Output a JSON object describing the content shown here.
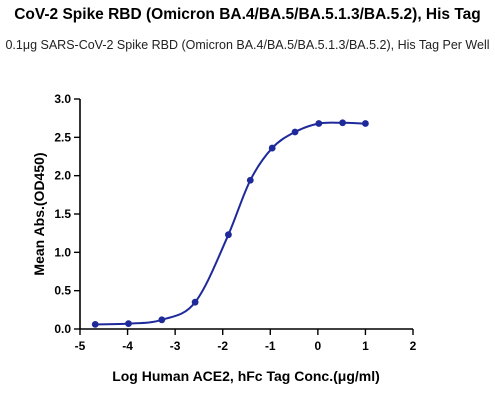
{
  "chart_data": {
    "type": "line",
    "title": "CoV-2 Spike RBD (Omicron BA.4/BA.5/BA.5.1.3/BA.5.2), His Tag",
    "subtitle": "0.1μg SARS-CoV-2 Spike RBD (Omicron BA.4/BA.5/BA.5.1.3/BA.5.2), His Tag Per Well",
    "xlabel": "Log Human ACE2, hFc Tag Conc.(μg/ml)",
    "ylabel": "Mean Abs.(OD450)",
    "xlim": [
      -5,
      2
    ],
    "ylim": [
      0,
      3.0
    ],
    "x_ticks": [
      -5,
      -4,
      -3,
      -2,
      -1,
      0,
      1,
      2
    ],
    "x_tick_labels": [
      "-5",
      "-4",
      "-3",
      "-2",
      "-1",
      "0",
      "1",
      "2"
    ],
    "y_ticks": [
      0,
      0.5,
      1.0,
      1.5,
      2.0,
      2.5,
      3.0
    ],
    "y_tick_labels": [
      "0.0",
      "0.5",
      "1.0",
      "1.5",
      "2.0",
      "2.5",
      "3.0"
    ],
    "grid": false,
    "series_color": "#1f2a9a",
    "points": [
      {
        "x": -4.68,
        "y": 0.06
      },
      {
        "x": -3.98,
        "y": 0.07
      },
      {
        "x": -3.28,
        "y": 0.12
      },
      {
        "x": -2.58,
        "y": 0.35
      },
      {
        "x": -1.88,
        "y": 1.23
      },
      {
        "x": -1.42,
        "y": 1.94
      },
      {
        "x": -0.96,
        "y": 2.36
      },
      {
        "x": -0.48,
        "y": 2.57
      },
      {
        "x": 0.02,
        "y": 2.68
      },
      {
        "x": 0.52,
        "y": 2.69
      },
      {
        "x": 1.0,
        "y": 2.68
      }
    ]
  }
}
